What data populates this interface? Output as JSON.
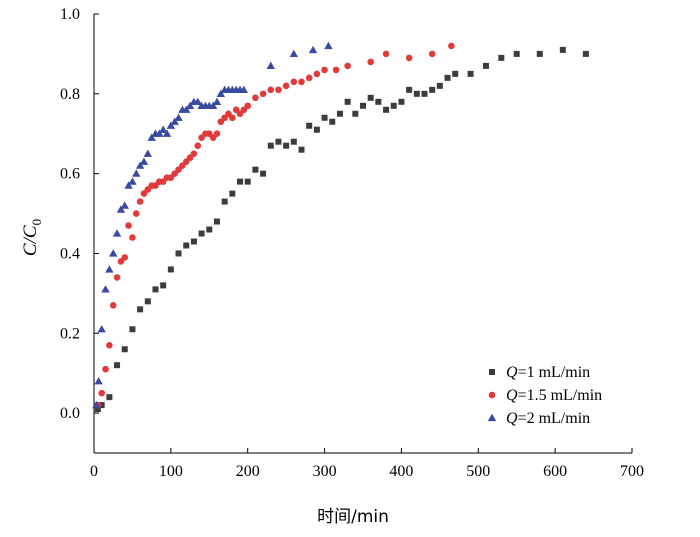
{
  "chart_data": {
    "type": "scatter",
    "title": "",
    "xlabel": "时间/min",
    "ylabel_main": "C",
    "ylabel_sub": "0",
    "xlim": [
      0,
      700
    ],
    "ylim": [
      -0.1,
      1.0
    ],
    "x_ticks": [
      0,
      100,
      200,
      300,
      400,
      500,
      600,
      700
    ],
    "y_ticks": [
      0.0,
      0.2,
      0.4,
      0.6,
      0.8,
      1.0
    ],
    "x_tick_labels": [
      "0",
      "100",
      "200",
      "300",
      "400",
      "500",
      "600",
      "700"
    ],
    "y_tick_labels": [
      "0.0",
      "0.2",
      "0.4",
      "0.6",
      "0.8",
      "1.0"
    ],
    "grid": false,
    "legend_position": "bottom-right",
    "series": [
      {
        "name": "Q=1 mL/min",
        "name_italic": "Q",
        "name_rest": "=1 mL/min",
        "marker": "square",
        "color": "#3c3c3c",
        "x": [
          5,
          10,
          20,
          30,
          40,
          50,
          60,
          70,
          80,
          90,
          100,
          110,
          120,
          130,
          140,
          150,
          160,
          170,
          180,
          190,
          200,
          210,
          220,
          230,
          240,
          250,
          260,
          270,
          280,
          290,
          300,
          310,
          320,
          330,
          340,
          350,
          360,
          370,
          380,
          390,
          400,
          410,
          420,
          430,
          440,
          450,
          460,
          470,
          490,
          510,
          530,
          550,
          580,
          610,
          640
        ],
        "y": [
          0.01,
          0.02,
          0.04,
          0.12,
          0.16,
          0.21,
          0.26,
          0.28,
          0.31,
          0.32,
          0.36,
          0.4,
          0.42,
          0.43,
          0.45,
          0.46,
          0.48,
          0.53,
          0.55,
          0.58,
          0.58,
          0.61,
          0.6,
          0.67,
          0.68,
          0.67,
          0.68,
          0.66,
          0.72,
          0.71,
          0.74,
          0.73,
          0.75,
          0.78,
          0.75,
          0.77,
          0.79,
          0.78,
          0.76,
          0.77,
          0.78,
          0.81,
          0.8,
          0.8,
          0.81,
          0.82,
          0.84,
          0.85,
          0.85,
          0.87,
          0.89,
          0.9,
          0.9,
          0.91,
          0.9
        ]
      },
      {
        "name": "Q=1.5 mL/min",
        "name_italic": "Q",
        "name_rest": "=1.5 mL/min",
        "marker": "circle",
        "color": "#e23a3a",
        "x": [
          5,
          10,
          15,
          20,
          25,
          30,
          35,
          40,
          45,
          50,
          55,
          60,
          65,
          70,
          75,
          80,
          85,
          90,
          95,
          100,
          105,
          110,
          115,
          120,
          125,
          130,
          135,
          140,
          145,
          150,
          155,
          160,
          165,
          170,
          175,
          180,
          185,
          190,
          195,
          200,
          210,
          220,
          230,
          240,
          250,
          260,
          270,
          280,
          290,
          300,
          315,
          330,
          360,
          380,
          410,
          440,
          465
        ],
        "y": [
          0.02,
          0.05,
          0.11,
          0.17,
          0.27,
          0.34,
          0.38,
          0.39,
          0.47,
          0.44,
          0.5,
          0.53,
          0.55,
          0.56,
          0.57,
          0.57,
          0.58,
          0.58,
          0.59,
          0.59,
          0.6,
          0.61,
          0.62,
          0.63,
          0.64,
          0.65,
          0.67,
          0.69,
          0.7,
          0.7,
          0.69,
          0.7,
          0.73,
          0.74,
          0.75,
          0.74,
          0.76,
          0.75,
          0.76,
          0.77,
          0.79,
          0.8,
          0.81,
          0.81,
          0.82,
          0.83,
          0.83,
          0.84,
          0.85,
          0.86,
          0.86,
          0.87,
          0.88,
          0.9,
          0.89,
          0.9,
          0.92
        ]
      },
      {
        "name": "Q=2 mL/min",
        "name_italic": "Q",
        "name_rest": "=2 mL/min",
        "marker": "triangle",
        "color": "#3a4aa0",
        "x": [
          3,
          6,
          10,
          15,
          20,
          25,
          30,
          35,
          40,
          45,
          50,
          55,
          60,
          65,
          70,
          75,
          80,
          85,
          90,
          95,
          100,
          105,
          110,
          115,
          120,
          125,
          130,
          135,
          140,
          145,
          150,
          155,
          160,
          165,
          170,
          175,
          180,
          185,
          190,
          195,
          230,
          260,
          285,
          305
        ],
        "y": [
          0.02,
          0.08,
          0.21,
          0.31,
          0.36,
          0.4,
          0.45,
          0.51,
          0.52,
          0.57,
          0.58,
          0.6,
          0.62,
          0.63,
          0.65,
          0.69,
          0.7,
          0.7,
          0.71,
          0.7,
          0.72,
          0.73,
          0.74,
          0.76,
          0.76,
          0.77,
          0.78,
          0.78,
          0.77,
          0.77,
          0.77,
          0.77,
          0.78,
          0.8,
          0.81,
          0.81,
          0.81,
          0.81,
          0.81,
          0.81,
          0.87,
          0.9,
          0.91,
          0.92
        ]
      }
    ]
  }
}
